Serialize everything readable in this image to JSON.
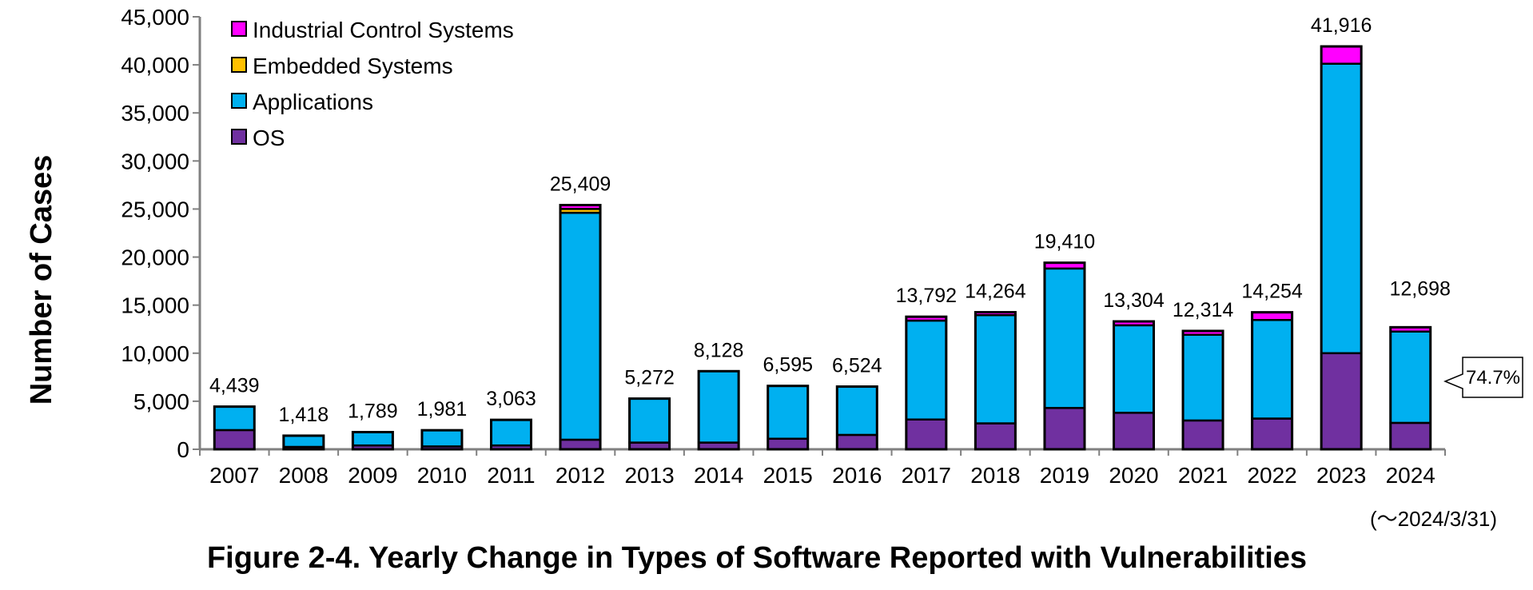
{
  "chart_data": {
    "type": "bar",
    "stacked": true,
    "title": "Figure 2-4. Yearly Change in Types of Software Reported with Vulnerabilities",
    "ylabel": "Number of Cases",
    "xlabel": "",
    "ylim": [
      0,
      45000
    ],
    "yticks": [
      0,
      5000,
      10000,
      15000,
      20000,
      25000,
      30000,
      35000,
      40000,
      45000
    ],
    "ytick_labels": [
      "0",
      "5,000",
      "10,000",
      "15,000",
      "20,000",
      "25,000",
      "30,000",
      "35,000",
      "40,000",
      "45,000"
    ],
    "categories": [
      "2007",
      "2008",
      "2009",
      "2010",
      "2011",
      "2012",
      "2013",
      "2014",
      "2015",
      "2016",
      "2017",
      "2018",
      "2019",
      "2020",
      "2021",
      "2022",
      "2023",
      "2024"
    ],
    "series": [
      {
        "name": "OS",
        "color": "#7030A0",
        "values": [
          2000,
          250,
          400,
          300,
          400,
          1000,
          700,
          700,
          1100,
          1500,
          3100,
          2700,
          4300,
          3800,
          3000,
          3200,
          10000,
          2750
        ]
      },
      {
        "name": "Applications",
        "color": "#00B0F0",
        "values": [
          2439,
          1168,
          1389,
          1681,
          2663,
          23609,
          4572,
          7428,
          5495,
          5024,
          10292,
          11264,
          14510,
          9104,
          8914,
          10254,
          30116,
          9498
        ]
      },
      {
        "name": "Embedded Systems",
        "color": "#FFC000",
        "values": [
          0,
          0,
          0,
          0,
          0,
          400,
          0,
          0,
          0,
          0,
          0,
          0,
          0,
          0,
          0,
          0,
          0,
          0
        ]
      },
      {
        "name": "Industrial Control Systems",
        "color": "#FF00FF",
        "values": [
          0,
          0,
          0,
          0,
          0,
          400,
          0,
          0,
          0,
          0,
          400,
          300,
          600,
          400,
          400,
          800,
          1800,
          450
        ]
      }
    ],
    "totals": [
      4439,
      1418,
      1789,
      1981,
      3063,
      25409,
      5272,
      8128,
      6595,
      6524,
      13792,
      14264,
      19410,
      13304,
      12314,
      14254,
      41916,
      12698
    ],
    "total_labels": [
      "4,439",
      "1,418",
      "1,789",
      "1,981",
      "3,063",
      "25,409",
      "5,272",
      "8,128",
      "6,595",
      "6,524",
      "13,792",
      "14,264",
      "19,410",
      "13,304",
      "12,314",
      "14,254",
      "41,916",
      "12,698"
    ],
    "legend_order": [
      "Industrial Control Systems",
      "Embedded Systems",
      "Applications",
      "OS"
    ],
    "legend_position": "top-left",
    "grid": false,
    "annotations": {
      "callout": "74.7%",
      "date_note": "(～2024/3/31)"
    }
  }
}
